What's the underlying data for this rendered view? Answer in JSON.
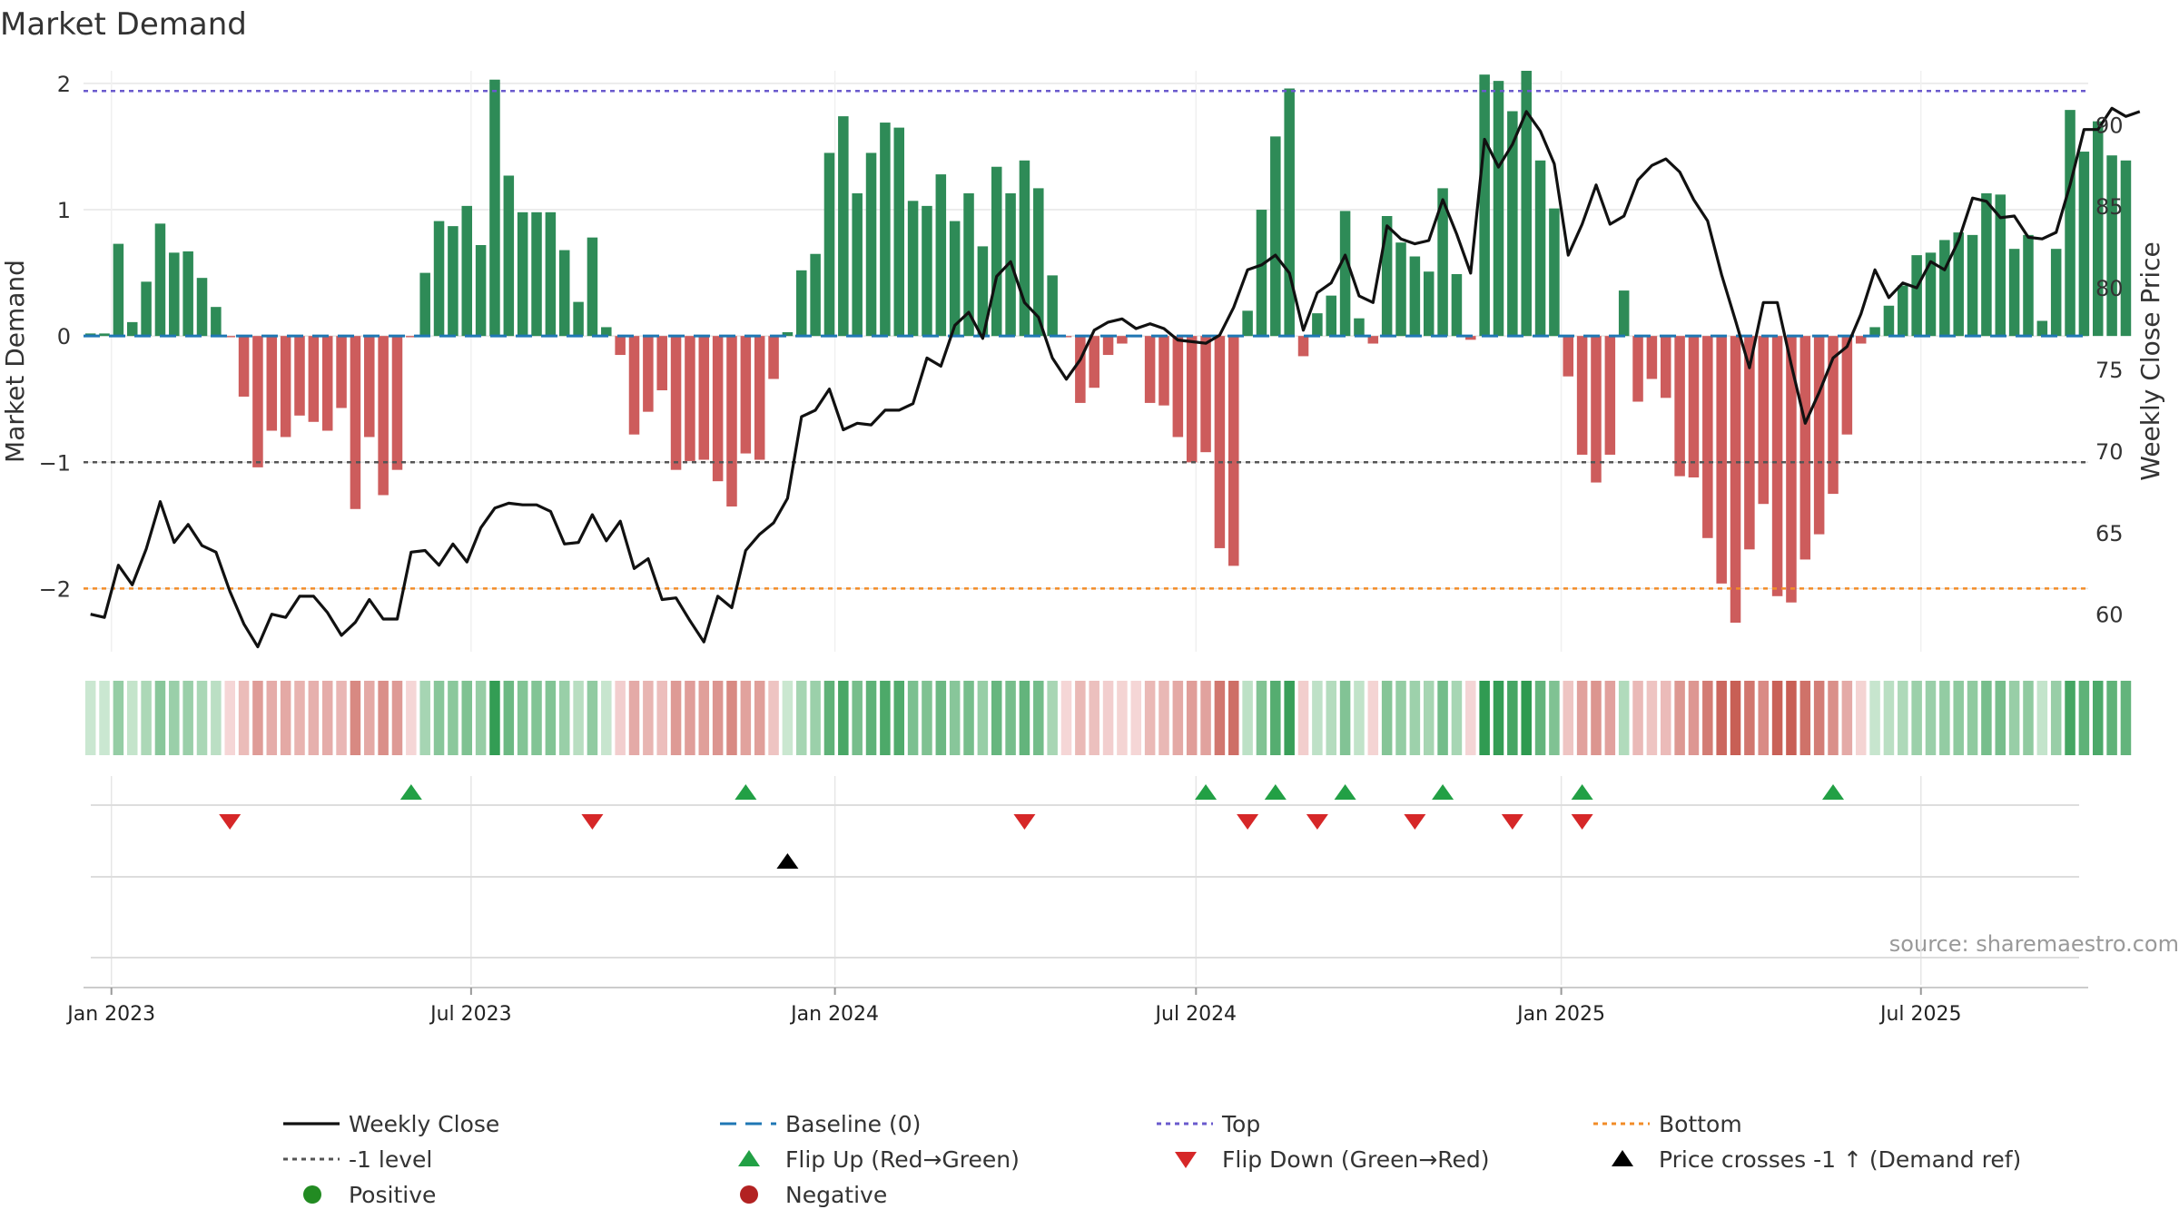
{
  "title": "Market Demand",
  "source": "source: sharemaestro.com",
  "colors": {
    "positive": "#2e8b57",
    "negative": "#cd5c5c",
    "price": "#111111",
    "baseline": "#1f77b4",
    "top": "#6a5acd",
    "bottom": "#f28c28",
    "minus1": "#555555",
    "flip_up": "#22a045",
    "flip_down": "#d62728",
    "cross": "#000000",
    "legend_positive": "#228b22",
    "legend_negative": "#b22222",
    "grid": "#e6e6e6"
  },
  "chart_data": {
    "type": "bar+line",
    "title": "Market Demand",
    "left_axis": {
      "label": "Market Demand",
      "ylim": [
        -2.5,
        2.1
      ],
      "ticks": [
        -2,
        -1,
        0,
        1,
        2
      ],
      "tick_labels": [
        "−2",
        "−1",
        "0",
        "1",
        "2"
      ]
    },
    "right_axis": {
      "label": "Weekly Close Price",
      "ylim": [
        57.7,
        93.3
      ],
      "ticks": [
        60,
        65,
        70,
        75,
        80,
        85,
        90
      ],
      "tick_labels": [
        "60",
        "65",
        "70",
        "75",
        "80",
        "85",
        "90"
      ]
    },
    "x_axis": {
      "start_week_offset": -0.5,
      "weeks_span": 143.8,
      "ticks": [
        {
          "label": "Jan 2023",
          "week": 1.5
        },
        {
          "label": "Jul 2023",
          "week": 27.3
        },
        {
          "label": "Jan 2024",
          "week": 53.4
        },
        {
          "label": "Jul 2024",
          "week": 79.3
        },
        {
          "label": "Jan 2025",
          "week": 105.5
        },
        {
          "label": "Jul 2025",
          "week": 131.3
        }
      ]
    },
    "reference_lines": {
      "top": 1.94,
      "bottom": -2.0,
      "baseline": 0,
      "minus1": -1
    },
    "demand": [
      0.02,
      0.02,
      0.73,
      0.11,
      0.43,
      0.89,
      0.66,
      0.67,
      0.46,
      0.23,
      -0.01,
      -0.48,
      -1.04,
      -0.75,
      -0.8,
      -0.63,
      -0.68,
      -0.75,
      -0.57,
      -1.37,
      -0.8,
      -1.26,
      -1.06,
      -0.01,
      0.5,
      0.91,
      0.87,
      1.03,
      0.72,
      2.03,
      1.27,
      0.98,
      0.98,
      0.98,
      0.68,
      0.27,
      0.78,
      0.07,
      -0.15,
      -0.78,
      -0.6,
      -0.43,
      -1.06,
      -0.99,
      -0.98,
      -1.15,
      -1.35,
      -0.93,
      -0.98,
      -0.34,
      0.03,
      0.52,
      0.65,
      1.45,
      1.74,
      1.13,
      1.45,
      1.69,
      1.65,
      1.07,
      1.03,
      1.28,
      0.91,
      1.13,
      0.71,
      1.34,
      1.13,
      1.39,
      1.17,
      0.48,
      -0.01,
      -0.53,
      -0.41,
      -0.15,
      -0.06,
      -0.01,
      -0.53,
      -0.55,
      -0.8,
      -1.0,
      -0.92,
      -1.68,
      -1.82,
      0.2,
      1.0,
      1.58,
      1.96,
      -0.16,
      0.18,
      0.32,
      0.99,
      0.14,
      -0.06,
      0.95,
      0.74,
      0.63,
      0.51,
      1.17,
      0.49,
      -0.03,
      2.07,
      2.02,
      1.78,
      2.1,
      1.39,
      1.01,
      -0.32,
      -0.94,
      -1.16,
      -0.94,
      0.36,
      -0.52,
      -0.34,
      -0.49,
      -1.11,
      -1.12,
      -1.6,
      -1.96,
      -2.27,
      -1.69,
      -1.33,
      -2.06,
      -2.11,
      -1.77,
      -1.57,
      -1.25,
      -0.78,
      -0.06,
      0.07,
      0.24,
      0.4,
      0.64,
      0.66,
      0.76,
      0.82,
      0.8,
      1.13,
      1.12,
      0.69,
      0.8,
      0.12,
      0.69,
      1.79,
      1.46,
      1.7,
      1.43,
      1.39
    ],
    "price": [
      60.0,
      59.8,
      63.0,
      61.8,
      64.0,
      66.9,
      64.4,
      65.5,
      64.2,
      63.8,
      61.4,
      59.4,
      58.0,
      60.0,
      59.8,
      61.1,
      61.1,
      60.1,
      58.7,
      59.5,
      60.9,
      59.7,
      59.7,
      63.8,
      63.9,
      63.0,
      64.3,
      63.2,
      65.3,
      66.5,
      66.8,
      66.7,
      66.7,
      66.3,
      64.3,
      64.4,
      66.1,
      64.5,
      65.7,
      62.8,
      63.4,
      60.9,
      61.0,
      59.6,
      58.3,
      61.1,
      60.4,
      63.9,
      64.9,
      65.6,
      67.1,
      72.1,
      72.5,
      73.8,
      71.3,
      71.7,
      71.6,
      72.5,
      72.5,
      72.9,
      75.7,
      75.2,
      77.7,
      78.5,
      76.9,
      80.7,
      81.6,
      79.1,
      78.2,
      75.7,
      74.4,
      75.6,
      77.4,
      77.9,
      78.1,
      77.5,
      77.8,
      77.5,
      76.8,
      76.7,
      76.6,
      77.1,
      78.8,
      81.1,
      81.4,
      82.0,
      80.9,
      77.4,
      79.7,
      80.3,
      82.0,
      79.5,
      79.1,
      83.8,
      83.0,
      82.7,
      82.9,
      85.4,
      83.3,
      80.9,
      89.1,
      87.4,
      88.8,
      90.8,
      89.6,
      87.6,
      82.0,
      83.9,
      86.3,
      83.9,
      84.4,
      86.6,
      87.5,
      87.9,
      87.1,
      85.4,
      84.1,
      80.8,
      78.0,
      75.1,
      79.1,
      79.1,
      75.3,
      71.7,
      73.6,
      75.7,
      76.4,
      78.4,
      81.1,
      79.4,
      80.3,
      80.0,
      81.6,
      81.1,
      82.9,
      85.5,
      85.3,
      84.3,
      84.4,
      83.1,
      83.0,
      83.4,
      86.3,
      89.7,
      89.7,
      91.0,
      90.5,
      90.8
    ],
    "heatmap_strip": "weekly demand encoded as green (positive) / red (negative) intensity",
    "flip_up_weeks": [
      23,
      47,
      80,
      85,
      90,
      97,
      107,
      125
    ],
    "flip_down_weeks": [
      10,
      36,
      67,
      83,
      88,
      95,
      102,
      107
    ],
    "price_cross_weeks": [
      50
    ]
  },
  "legend": [
    {
      "label": "Weekly Close",
      "symbol": "solid-line",
      "color": "#111111"
    },
    {
      "label": "Baseline (0)",
      "symbol": "dashed-line",
      "color": "#1f77b4"
    },
    {
      "label": "Top",
      "symbol": "dotted-line",
      "color": "#6a5acd"
    },
    {
      "label": "Bottom",
      "symbol": "dotted-line",
      "color": "#f28c28"
    },
    {
      "label": "-1 level",
      "symbol": "dotted-line",
      "color": "#555555"
    },
    {
      "label": "Flip Up (Red→Green)",
      "symbol": "triangle-up",
      "color": "#22a045"
    },
    {
      "label": "Flip Down (Green→Red)",
      "symbol": "triangle-down",
      "color": "#d62728"
    },
    {
      "label": "Price crosses -1 ↑ (Demand ref)",
      "symbol": "triangle-up",
      "color": "#000000"
    },
    {
      "label": "Positive",
      "symbol": "circle",
      "color": "#228b22"
    },
    {
      "label": "Negative",
      "symbol": "circle",
      "color": "#b22222"
    }
  ]
}
